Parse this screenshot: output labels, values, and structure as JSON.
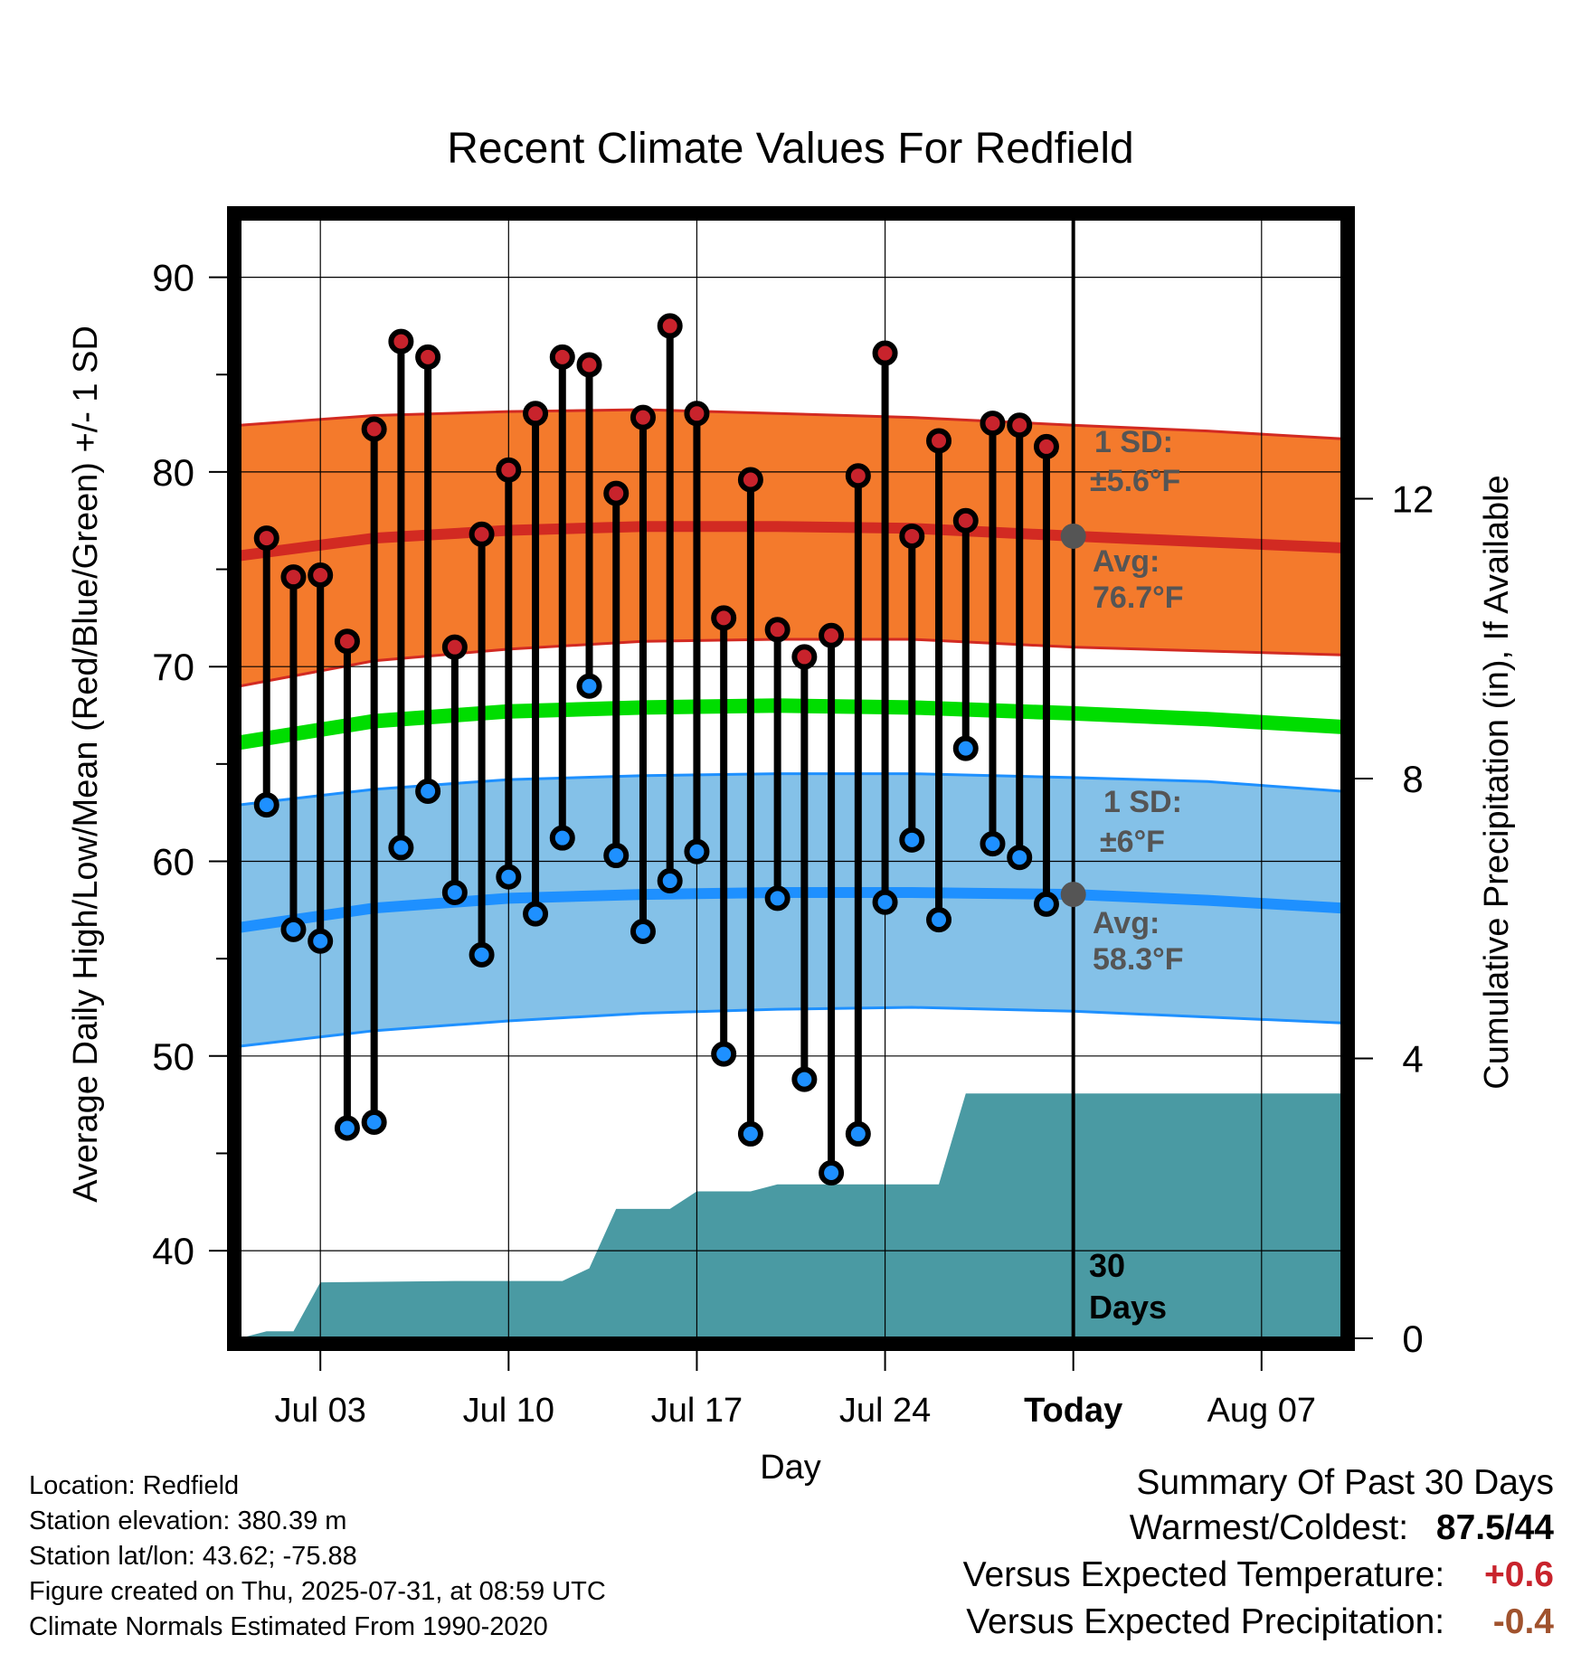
{
  "chart_data": {
    "type": "line",
    "title": "Recent Climate Values For Redfield",
    "xlabel": "Day",
    "ylabel": "Average Daily High/Low/Mean (Red/Blue/Green) +/- 1 SD",
    "y2label": "Cumulative Precipitation (in), If Available",
    "ylim": [
      35.5,
      93
    ],
    "y2lim": [
      0,
      16
    ],
    "xlim": [
      "2025-06-30",
      "2025-08-10"
    ],
    "x_ticks": [
      {
        "date": "2025-07-03",
        "label": "Jul 03"
      },
      {
        "date": "2025-07-10",
        "label": "Jul 10"
      },
      {
        "date": "2025-07-17",
        "label": "Jul 17"
      },
      {
        "date": "2025-07-24",
        "label": "Jul 24"
      },
      {
        "date": "2025-07-31",
        "label": "Today"
      },
      {
        "date": "2025-08-07",
        "label": "Aug 07"
      }
    ],
    "y_ticks": [
      40,
      50,
      60,
      70,
      80,
      90
    ],
    "y2_ticks": [
      0,
      4,
      8,
      12
    ],
    "grid": true,
    "today": "2025-07-31",
    "daily": {
      "dates": [
        "2025-07-01",
        "2025-07-02",
        "2025-07-03",
        "2025-07-04",
        "2025-07-05",
        "2025-07-06",
        "2025-07-07",
        "2025-07-08",
        "2025-07-09",
        "2025-07-10",
        "2025-07-11",
        "2025-07-12",
        "2025-07-13",
        "2025-07-14",
        "2025-07-15",
        "2025-07-16",
        "2025-07-17",
        "2025-07-18",
        "2025-07-19",
        "2025-07-20",
        "2025-07-21",
        "2025-07-22",
        "2025-07-23",
        "2025-07-24",
        "2025-07-25",
        "2025-07-26",
        "2025-07-27",
        "2025-07-28",
        "2025-07-29",
        "2025-07-30"
      ],
      "high": [
        76.6,
        74.6,
        74.7,
        71.3,
        82.2,
        86.7,
        85.9,
        71.0,
        76.8,
        80.1,
        83.0,
        85.9,
        85.5,
        78.9,
        82.8,
        87.5,
        83.0,
        72.5,
        79.6,
        71.9,
        70.5,
        71.6,
        79.8,
        86.1,
        76.7,
        81.6,
        77.5,
        82.5,
        82.4,
        81.3
      ],
      "low": [
        62.9,
        56.5,
        55.9,
        46.3,
        46.6,
        60.7,
        63.6,
        58.4,
        55.2,
        59.2,
        57.3,
        61.2,
        69.0,
        60.3,
        56.4,
        59.0,
        60.5,
        50.1,
        46.0,
        58.1,
        48.8,
        44.0,
        46.0,
        57.9,
        61.1,
        57.0,
        65.8,
        60.9,
        60.2,
        57.8
      ]
    },
    "normals": {
      "dates": [
        "2025-06-30",
        "2025-07-05",
        "2025-07-10",
        "2025-07-15",
        "2025-07-20",
        "2025-07-25",
        "2025-07-31",
        "2025-08-05",
        "2025-08-10"
      ],
      "high_avg": [
        75.7,
        76.6,
        77.0,
        77.2,
        77.2,
        77.1,
        76.7,
        76.4,
        76.1
      ],
      "high_sd_upper": [
        82.4,
        82.9,
        83.1,
        83.2,
        83.0,
        82.8,
        82.4,
        82.1,
        81.7
      ],
      "high_sd_lower": [
        69.0,
        70.3,
        70.9,
        71.3,
        71.4,
        71.4,
        71.0,
        70.8,
        70.6
      ],
      "mean": [
        66.1,
        67.2,
        67.7,
        67.9,
        68.0,
        67.9,
        67.6,
        67.3,
        66.9
      ],
      "low_avg": [
        56.6,
        57.6,
        58.1,
        58.3,
        58.4,
        58.4,
        58.3,
        58.0,
        57.6
      ],
      "low_sd_upper": [
        62.9,
        63.7,
        64.2,
        64.4,
        64.5,
        64.5,
        64.3,
        64.1,
        63.6
      ],
      "low_sd_lower": [
        50.5,
        51.3,
        51.8,
        52.2,
        52.4,
        52.5,
        52.3,
        52.0,
        51.7
      ]
    },
    "precipitation": {
      "dates": [
        "2025-06-30",
        "2025-07-01",
        "2025-07-02",
        "2025-07-03",
        "2025-07-08",
        "2025-07-12",
        "2025-07-13",
        "2025-07-14",
        "2025-07-16",
        "2025-07-17",
        "2025-07-19",
        "2025-07-20",
        "2025-07-26",
        "2025-07-27",
        "2025-08-10"
      ],
      "cumulative": [
        0.0,
        0.1,
        0.1,
        0.8,
        0.82,
        0.82,
        1.0,
        1.85,
        1.85,
        2.1,
        2.1,
        2.2,
        2.2,
        3.5,
        3.5
      ]
    },
    "annotations": {
      "high_sd": "1 SD:",
      "high_sd_value": "±5.6°F",
      "high_avg_label": "Avg:",
      "high_avg_value": "76.7°F",
      "low_sd": "1 SD:",
      "low_sd_value": "±6°F",
      "low_avg_label": "Avg:",
      "low_avg_value": "58.3°F",
      "period_line1": "30",
      "period_line2": "Days"
    },
    "colors": {
      "high_band": "#f47a2c",
      "high_line": "#d22a22",
      "mean_line": "#00dd00",
      "low_band": "#84c1e8",
      "low_line": "#1e90ff",
      "precip": "#4a9aa3",
      "high_marker": "#c8232c",
      "low_marker": "#1e90ff",
      "annotation": "#555555",
      "avg_marker": "#555555"
    }
  },
  "footer": {
    "location": "Location: Redfield",
    "elevation": "Station elevation: 380.39 m",
    "latlon": "Station lat/lon: 43.62; -75.88",
    "created": "Figure created on Thu, 2025-07-31, at 08:59 UTC",
    "normals": "Climate Normals Estimated From 1990-2020"
  },
  "summary": {
    "title": "Summary Of Past 30 Days",
    "warmest_coldest_label": "Warmest/Coldest:",
    "warmest_coldest_value": "87.5/44",
    "temp_label": "Versus Expected Temperature:",
    "temp_value": "+0.6",
    "temp_color": "#c8232c",
    "precip_label": "Versus Expected Precipitation:",
    "precip_value": "-0.4",
    "precip_color": "#a0522d"
  }
}
